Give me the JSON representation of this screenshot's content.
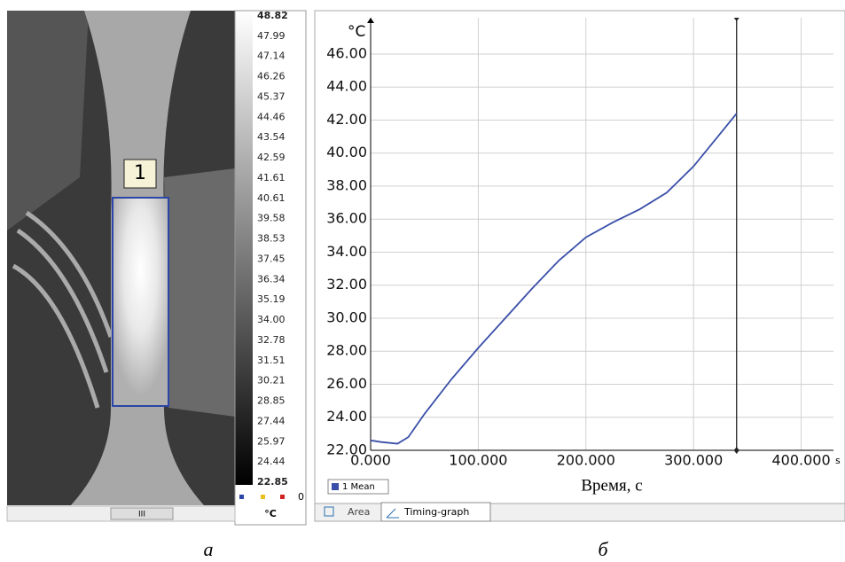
{
  "thermal_image": {
    "region_label": "1",
    "scale_labels": [
      "48.82",
      "47.99",
      "47.14",
      "46.26",
      "45.37",
      "44.46",
      "43.54",
      "42.59",
      "41.61",
      "40.61",
      "39.58",
      "38.53",
      "37.45",
      "36.34",
      "35.19",
      "34.00",
      "32.78",
      "31.51",
      "30.21",
      "28.85",
      "27.44",
      "25.97",
      "24.44",
      "22.85"
    ],
    "scale_unit": "°C",
    "palette_count": "0",
    "scroll_thumb": "III",
    "caption": "а"
  },
  "chart_data": {
    "type": "line",
    "y_unit": "°C",
    "x_unit": "s",
    "xlabel": "Время, с",
    "x": [
      0,
      10,
      25,
      35,
      50,
      75,
      100,
      125,
      150,
      175,
      200,
      225,
      250,
      275,
      300,
      325,
      340
    ],
    "series": [
      {
        "name": "1 Mean",
        "color": "#3a4fa8",
        "values": [
          22.6,
          22.5,
          22.4,
          22.8,
          24.2,
          26.3,
          28.2,
          30.0,
          31.8,
          33.5,
          34.9,
          35.8,
          36.6,
          37.6,
          39.2,
          41.2,
          42.4
        ]
      }
    ],
    "xlim": [
      0,
      430
    ],
    "ylim": [
      22,
      48.2
    ],
    "xticks": [
      {
        "value": 0,
        "label": "0.000"
      },
      {
        "value": 100,
        "label": "100.000"
      },
      {
        "value": 200,
        "label": "200.000"
      },
      {
        "value": 300,
        "label": "300.000"
      },
      {
        "value": 400,
        "label": "400.000"
      }
    ],
    "yticks": [
      {
        "value": 22,
        "label": "22.00"
      },
      {
        "value": 24,
        "label": "24.00"
      },
      {
        "value": 26,
        "label": "26.00"
      },
      {
        "value": 28,
        "label": "28.00"
      },
      {
        "value": 30,
        "label": "30.00"
      },
      {
        "value": 32,
        "label": "32.00"
      },
      {
        "value": 34,
        "label": "34.00"
      },
      {
        "value": 36,
        "label": "36.00"
      },
      {
        "value": 38,
        "label": "38.00"
      },
      {
        "value": 40,
        "label": "40.00"
      },
      {
        "value": 42,
        "label": "42.00"
      },
      {
        "value": 44,
        "label": "44.00"
      },
      {
        "value": 46,
        "label": "46.00"
      }
    ],
    "grid": true,
    "cursor_x": 340
  },
  "tabs": [
    "Area",
    "Timing-graph"
  ],
  "caption": "б"
}
